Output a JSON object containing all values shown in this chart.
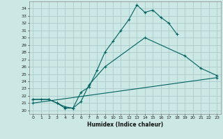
{
  "xlabel": "Humidex (Indice chaleur)",
  "bg_color": "#cce8e4",
  "grid_color": "#aacccc",
  "line_color": "#006060",
  "xlim": [
    -0.5,
    23.5
  ],
  "ylim": [
    19.5,
    35.0
  ],
  "xticks": [
    0,
    1,
    2,
    3,
    4,
    5,
    6,
    7,
    8,
    9,
    10,
    11,
    12,
    13,
    14,
    15,
    16,
    17,
    18,
    19,
    20,
    21,
    22,
    23
  ],
  "yticks": [
    20,
    21,
    22,
    23,
    24,
    25,
    26,
    27,
    28,
    29,
    30,
    31,
    32,
    33,
    34
  ],
  "line1_x": [
    0,
    1,
    2,
    3,
    4,
    5,
    6,
    7,
    8,
    9,
    10,
    11,
    12,
    13,
    14,
    15,
    16,
    17,
    18
  ],
  "line1_y": [
    21.5,
    21.5,
    21.5,
    21.0,
    20.5,
    20.3,
    22.5,
    23.2,
    25.5,
    28.0,
    29.5,
    31.0,
    32.5,
    34.5,
    33.5,
    33.8,
    32.8,
    32.0,
    30.5
  ],
  "line2_x": [
    0,
    2,
    3,
    4,
    5,
    6,
    7,
    9,
    14,
    19,
    21,
    23
  ],
  "line2_y": [
    21.5,
    21.5,
    21.0,
    20.3,
    20.3,
    21.2,
    23.5,
    26.0,
    30.0,
    27.5,
    25.8,
    24.8
  ],
  "line3_x": [
    0,
    23
  ],
  "line3_y": [
    21.0,
    24.5
  ]
}
